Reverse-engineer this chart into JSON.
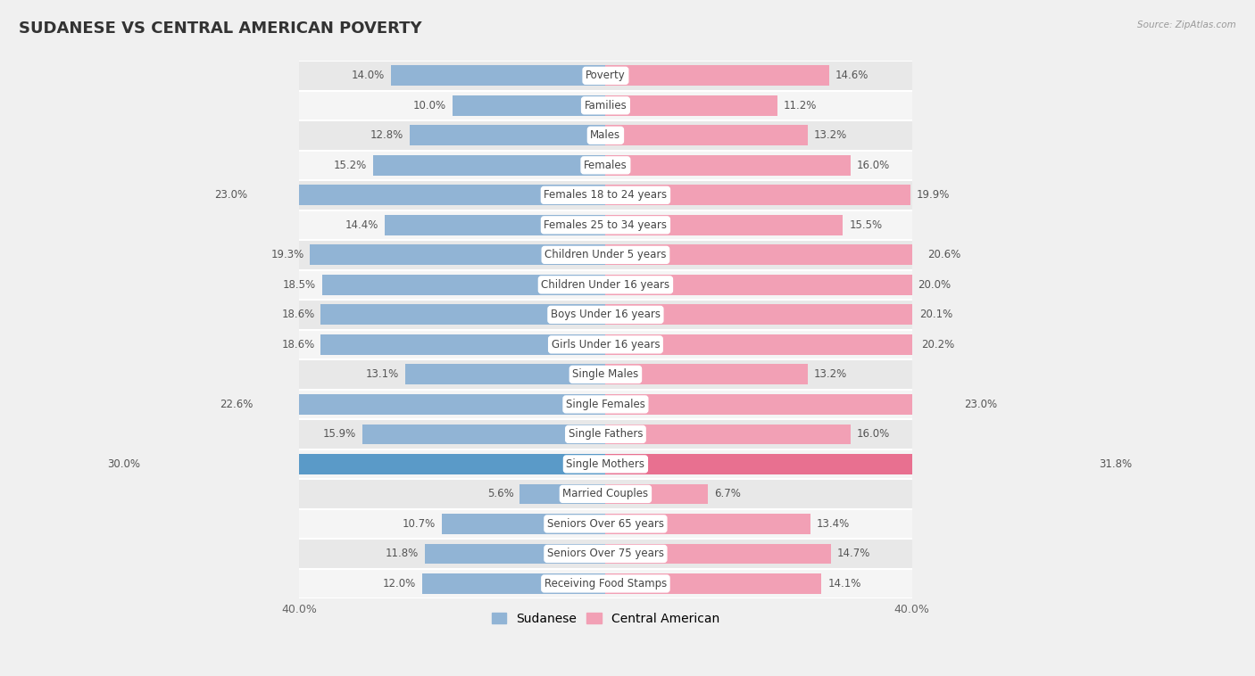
{
  "title": "SUDANESE VS CENTRAL AMERICAN POVERTY",
  "source": "Source: ZipAtlas.com",
  "categories": [
    "Poverty",
    "Families",
    "Males",
    "Females",
    "Females 18 to 24 years",
    "Females 25 to 34 years",
    "Children Under 5 years",
    "Children Under 16 years",
    "Boys Under 16 years",
    "Girls Under 16 years",
    "Single Males",
    "Single Females",
    "Single Fathers",
    "Single Mothers",
    "Married Couples",
    "Seniors Over 65 years",
    "Seniors Over 75 years",
    "Receiving Food Stamps"
  ],
  "sudanese": [
    14.0,
    10.0,
    12.8,
    15.2,
    23.0,
    14.4,
    19.3,
    18.5,
    18.6,
    18.6,
    13.1,
    22.6,
    15.9,
    30.0,
    5.6,
    10.7,
    11.8,
    12.0
  ],
  "central_american": [
    14.6,
    11.2,
    13.2,
    16.0,
    19.9,
    15.5,
    20.6,
    20.0,
    20.1,
    20.2,
    13.2,
    23.0,
    16.0,
    31.8,
    6.7,
    13.4,
    14.7,
    14.1
  ],
  "sudanese_color": "#91b4d5",
  "central_american_color": "#f2a0b5",
  "single_mothers_sudanese_color": "#5a9ac8",
  "single_mothers_ca_color": "#e87090",
  "bar_height": 0.68,
  "xlim": [
    0,
    40
  ],
  "background_color": "#f0f0f0",
  "row_bg_even": "#e8e8e8",
  "row_bg_odd": "#f5f5f5",
  "title_fontsize": 13,
  "label_fontsize": 8.5,
  "value_fontsize": 8.5,
  "tick_fontsize": 9,
  "legend_fontsize": 10
}
